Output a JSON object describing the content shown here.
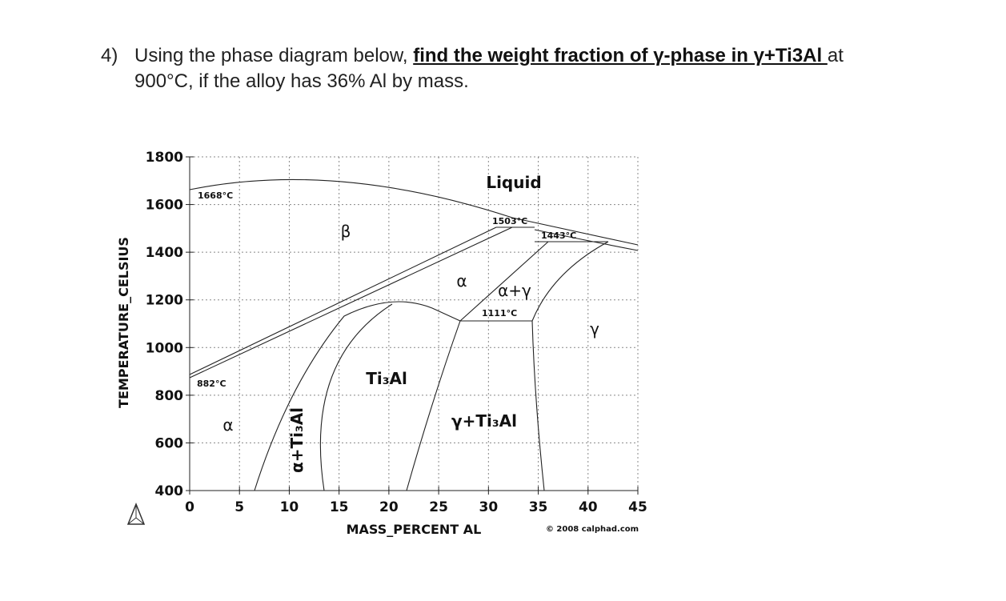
{
  "question": {
    "number": "4)",
    "before": "Using the phase diagram below, ",
    "emphasis": "find the weight fraction of γ-phase in γ+Ti3Al ",
    "after": "at",
    "line2": "900°C, if the alloy has 36% Al by mass."
  },
  "figure": {
    "y_label": "TEMPERATURE_CELSIUS",
    "x_label": "MASS_PERCENT AL",
    "credit": "© 2008 calphad.com",
    "xticks": [
      0,
      5,
      10,
      15,
      20,
      25,
      30,
      35,
      40,
      45
    ],
    "yticks": [
      400,
      600,
      800,
      1000,
      1200,
      1400,
      1600,
      1800
    ],
    "regions": [
      "Liquid",
      "β",
      "α",
      "α+γ",
      "γ",
      "Ti₃Al",
      "γ+Ti₃Al",
      "α",
      "α+Ti₃Al"
    ],
    "temperatures": [
      "1668°C",
      "1503°C",
      "1443°C",
      "1111°C",
      "882°C"
    ]
  }
}
